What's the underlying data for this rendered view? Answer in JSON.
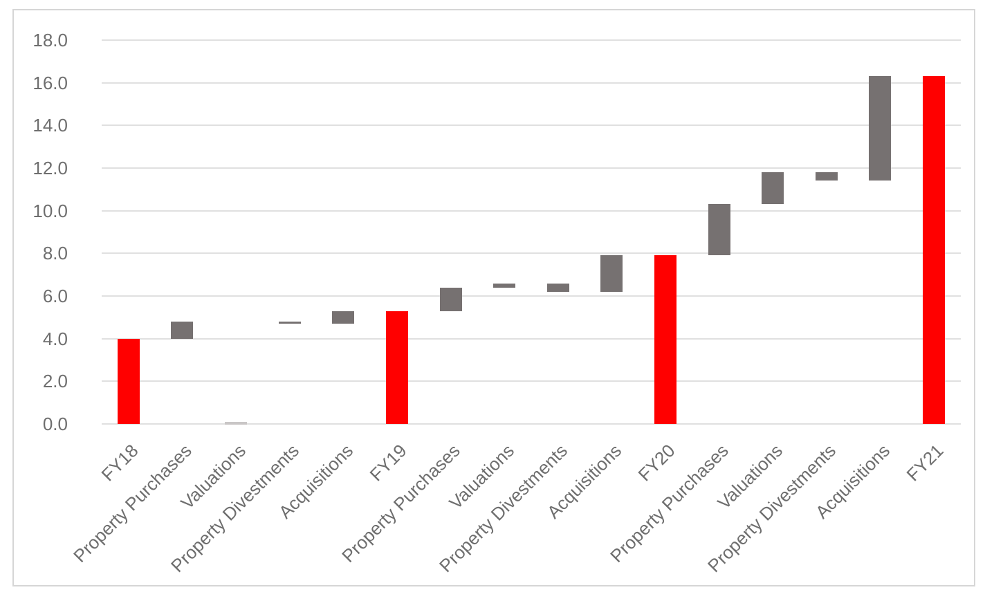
{
  "chart_data": {
    "type": "bar",
    "subtype": "waterfall",
    "title": "",
    "categories": [
      "FY18",
      "Property Purchases",
      "Valuations",
      "Property Divestments",
      "Acquisitions",
      "FY19",
      "Property Purchases",
      "Valuations",
      "Property Divestments",
      "Acquisitions",
      "FY20",
      "Property Purchases",
      "Valuations",
      "Property Divestments",
      "Acquisitions",
      "FY21"
    ],
    "columns": [
      {
        "label": "FY18",
        "kind": "total",
        "start": 0.0,
        "end": 4.0,
        "delta": 4.0
      },
      {
        "label": "Property Purchases",
        "kind": "delta",
        "start": 4.0,
        "end": 4.8,
        "delta": 0.8
      },
      {
        "label": "Valuations",
        "kind": "zero",
        "start": 4.8,
        "end": 4.8,
        "delta": 0.0
      },
      {
        "label": "Property Divestments",
        "kind": "delta",
        "start": 4.8,
        "end": 4.7,
        "delta": -0.1
      },
      {
        "label": "Acquisitions",
        "kind": "delta",
        "start": 4.7,
        "end": 5.3,
        "delta": 0.6
      },
      {
        "label": "FY19",
        "kind": "total",
        "start": 0.0,
        "end": 5.3,
        "delta": 5.3
      },
      {
        "label": "Property Purchases",
        "kind": "delta",
        "start": 5.3,
        "end": 6.4,
        "delta": 1.1
      },
      {
        "label": "Valuations",
        "kind": "delta",
        "start": 6.4,
        "end": 6.6,
        "delta": 0.2
      },
      {
        "label": "Property Divestments",
        "kind": "delta",
        "start": 6.6,
        "end": 6.2,
        "delta": -0.4
      },
      {
        "label": "Acquisitions",
        "kind": "delta",
        "start": 6.2,
        "end": 7.9,
        "delta": 1.7
      },
      {
        "label": "FY20",
        "kind": "total",
        "start": 0.0,
        "end": 7.9,
        "delta": 7.9
      },
      {
        "label": "Property Purchases",
        "kind": "delta",
        "start": 7.9,
        "end": 10.3,
        "delta": 2.4
      },
      {
        "label": "Valuations",
        "kind": "delta",
        "start": 10.3,
        "end": 11.8,
        "delta": 1.5
      },
      {
        "label": "Property Divestments",
        "kind": "delta",
        "start": 11.8,
        "end": 11.4,
        "delta": -0.4
      },
      {
        "label": "Acquisitions",
        "kind": "delta",
        "start": 11.4,
        "end": 16.3,
        "delta": 4.9
      },
      {
        "label": "FY21",
        "kind": "total",
        "start": 0.0,
        "end": 16.3,
        "delta": 16.3
      }
    ],
    "y_axis": {
      "min": 0,
      "max": 18,
      "step": 2,
      "tick_labels": [
        "0.0",
        "2.0",
        "4.0",
        "6.0",
        "8.0",
        "10.0",
        "12.0",
        "14.0",
        "16.0",
        "18.0"
      ]
    },
    "x_axis": {
      "label_rotation_deg": -45
    },
    "grid": true,
    "legend": false,
    "colors": {
      "total_bar": "#ff0000",
      "delta_bar": "#767171",
      "zero_marker": "#c9c6c6",
      "gridline": "#e0e0e0",
      "axis_text": "#6e6e6e",
      "frame_border": "#d6d6d6",
      "background": "#ffffff"
    }
  }
}
